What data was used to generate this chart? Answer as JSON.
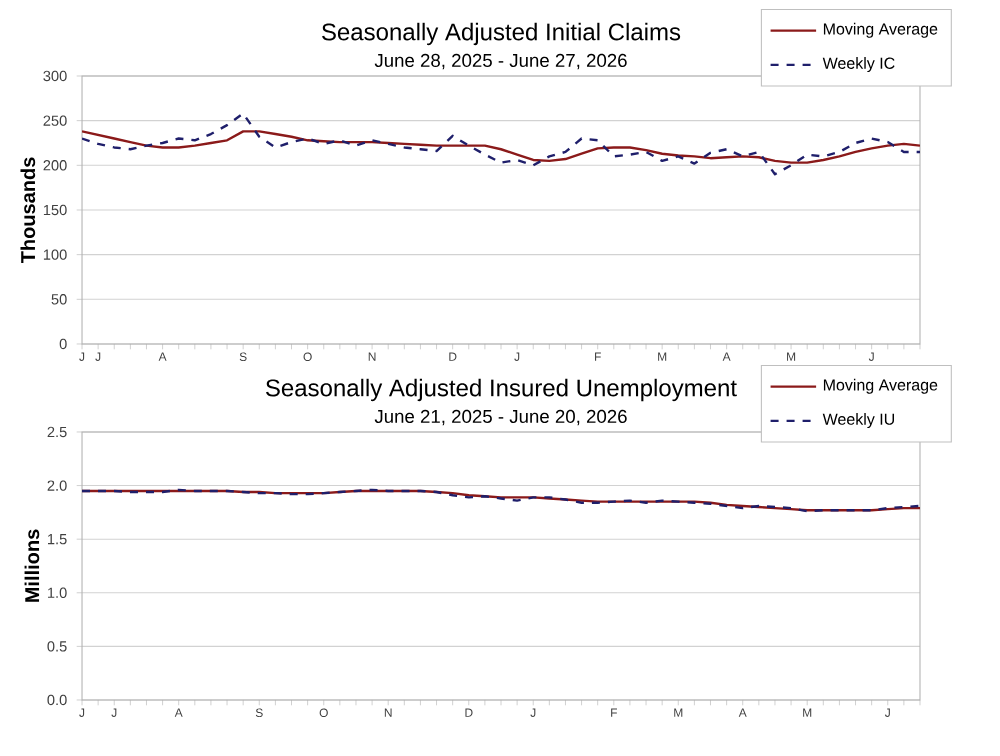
{
  "chart_data": [
    {
      "type": "line",
      "title": "Seasonally Adjusted Initial Claims",
      "subtitle": "June 28, 2025 - June 27, 2026",
      "ylabel": "Thousands",
      "series": [
        {
          "name": "Moving Average",
          "color": "#8b1a1a",
          "line_style": "solid",
          "values": [
            238,
            234,
            230,
            226,
            222,
            220,
            220,
            222,
            225,
            228,
            238,
            238,
            235,
            232,
            228,
            227,
            226,
            226,
            226,
            225,
            224,
            223,
            222,
            222,
            222,
            222,
            218,
            212,
            206,
            205,
            207,
            213,
            219,
            220,
            220,
            217,
            213,
            211,
            210,
            208,
            209,
            210,
            209,
            205,
            203,
            203,
            206,
            210,
            215,
            219,
            222,
            224,
            222
          ]
        },
        {
          "name": "Weekly IC",
          "color": "#1f1f6b",
          "line_style": "dashed",
          "values": [
            230,
            224,
            220,
            218,
            222,
            225,
            230,
            228,
            235,
            245,
            258,
            232,
            220,
            226,
            230,
            224,
            228,
            222,
            228,
            224,
            220,
            218,
            216,
            233,
            222,
            212,
            203,
            206,
            200,
            210,
            215,
            230,
            228,
            210,
            212,
            215,
            205,
            210,
            202,
            214,
            218,
            210,
            215,
            190,
            200,
            212,
            210,
            215,
            225,
            230,
            226,
            215,
            215
          ]
        }
      ],
      "ylim": [
        0,
        300
      ],
      "yticks": [
        0,
        50,
        100,
        150,
        200,
        250,
        300
      ],
      "categories": [
        "J",
        "J",
        null,
        null,
        null,
        "A",
        null,
        null,
        null,
        null,
        "S",
        null,
        null,
        null,
        "O",
        null,
        null,
        null,
        "N",
        null,
        null,
        null,
        null,
        "D",
        null,
        null,
        null,
        "J",
        null,
        null,
        null,
        null,
        "F",
        null,
        null,
        null,
        "M",
        null,
        null,
        null,
        "A",
        null,
        null,
        null,
        "M",
        null,
        null,
        null,
        null,
        "J",
        null,
        null,
        null
      ],
      "grid": "y",
      "legend": "top right",
      "marker": "none"
    },
    {
      "type": "line",
      "title": "Seasonally Adjusted Insured Unemployment",
      "subtitle": "June 21, 2025 - June 20, 2026",
      "ylabel": "Millions",
      "series": [
        {
          "name": "Moving Average",
          "color": "#8b1a1a",
          "line_style": "solid",
          "values": [
            1.95,
            1.95,
            1.95,
            1.95,
            1.95,
            1.95,
            1.95,
            1.95,
            1.95,
            1.95,
            1.94,
            1.94,
            1.93,
            1.93,
            1.93,
            1.93,
            1.94,
            1.95,
            1.95,
            1.95,
            1.95,
            1.95,
            1.94,
            1.93,
            1.91,
            1.9,
            1.89,
            1.89,
            1.89,
            1.88,
            1.87,
            1.86,
            1.85,
            1.85,
            1.85,
            1.85,
            1.85,
            1.85,
            1.85,
            1.84,
            1.82,
            1.81,
            1.8,
            1.79,
            1.78,
            1.77,
            1.77,
            1.77,
            1.77,
            1.77,
            1.78,
            1.79,
            1.79
          ]
        },
        {
          "name": "Weekly IU",
          "color": "#1f1f6b",
          "line_style": "dashed",
          "values": [
            1.95,
            1.95,
            1.95,
            1.94,
            1.94,
            1.94,
            1.96,
            1.95,
            1.95,
            1.95,
            1.94,
            1.93,
            1.93,
            1.92,
            1.92,
            1.93,
            1.94,
            1.95,
            1.96,
            1.95,
            1.95,
            1.95,
            1.94,
            1.91,
            1.89,
            1.9,
            1.88,
            1.86,
            1.89,
            1.89,
            1.87,
            1.84,
            1.84,
            1.85,
            1.86,
            1.84,
            1.86,
            1.85,
            1.84,
            1.83,
            1.81,
            1.79,
            1.81,
            1.8,
            1.79,
            1.76,
            1.77,
            1.77,
            1.77,
            1.77,
            1.79,
            1.8,
            1.81
          ]
        }
      ],
      "ylim": [
        0,
        2.5
      ],
      "yticks": [
        {
          "value": 0,
          "label": "0.0"
        },
        0.5,
        {
          "value": 1,
          "label": "1.0"
        },
        1.5,
        {
          "value": 2,
          "label": "2.0"
        },
        2.5
      ],
      "categories": [
        "J",
        null,
        "J",
        null,
        null,
        null,
        "A",
        null,
        null,
        null,
        null,
        "S",
        null,
        null,
        null,
        "O",
        null,
        null,
        null,
        "N",
        null,
        null,
        null,
        null,
        "D",
        null,
        null,
        null,
        "J",
        null,
        null,
        null,
        null,
        "F",
        null,
        null,
        null,
        "M",
        null,
        null,
        null,
        "A",
        null,
        null,
        null,
        "M",
        null,
        null,
        null,
        null,
        "J",
        null,
        null
      ],
      "grid": "y",
      "legend": "top right",
      "marker": "none"
    }
  ]
}
